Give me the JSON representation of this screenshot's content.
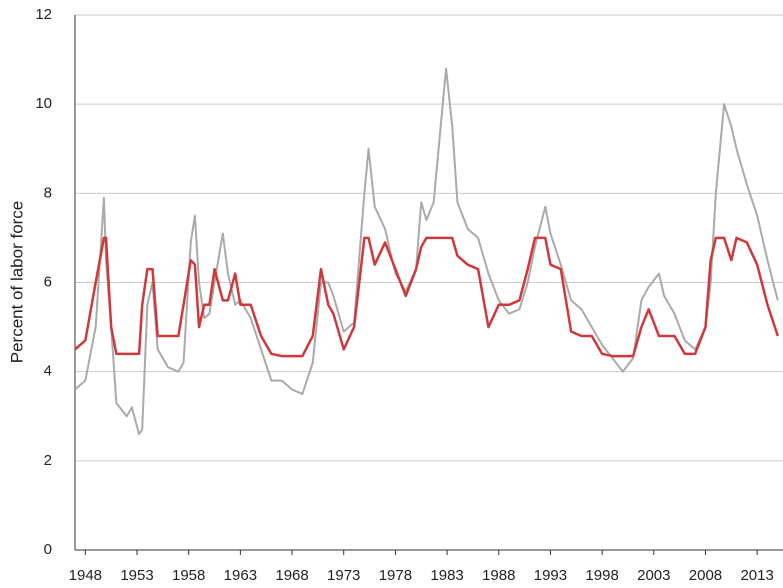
{
  "chart_data": {
    "type": "line",
    "y_label": "Percent of labor force",
    "x": [
      1947,
      1948,
      1949,
      1949.8,
      1950,
      1950.5,
      1951,
      1952,
      1952.5,
      1953.2,
      1953.5,
      1954,
      1954.5,
      1955,
      1956,
      1957,
      1957.5,
      1958.2,
      1958.6,
      1959,
      1959.5,
      1960,
      1960.5,
      1961.3,
      1961.8,
      1962.5,
      1963,
      1964,
      1965,
      1966,
      1967,
      1968,
      1969,
      1970,
      1970.8,
      1971.5,
      1972,
      1973,
      1974,
      1975,
      1975.4,
      1976,
      1977,
      1978,
      1979,
      1980,
      1980.5,
      1981,
      1981.7,
      1982.5,
      1982.9,
      1983.5,
      1984,
      1985,
      1986,
      1987,
      1988,
      1989,
      1990,
      1990.8,
      1991.5,
      1992.5,
      1993,
      1994,
      1995,
      1996,
      1997,
      1998,
      1999,
      2000,
      2001,
      2001.8,
      2002.5,
      2003.5,
      2004,
      2005,
      2006,
      2007,
      2008,
      2008.5,
      2009,
      2009.8,
      2010.5,
      2011,
      2012,
      2013,
      2014,
      2015
    ],
    "series": [
      {
        "color": "#aaaaaa",
        "values": [
          3.6,
          3.8,
          5,
          7.9,
          6.5,
          5,
          3.3,
          3.0,
          3.2,
          2.6,
          2.7,
          5.5,
          6.0,
          4.5,
          4.1,
          4.0,
          4.2,
          6.9,
          7.5,
          6.0,
          5.2,
          5.3,
          6.0,
          7.1,
          6.2,
          5.5,
          5.6,
          5.2,
          4.5,
          3.8,
          3.8,
          3.6,
          3.5,
          4.2,
          6.0,
          6.0,
          5.7,
          4.9,
          5.1,
          8.0,
          9.0,
          7.7,
          7.2,
          6.2,
          5.8,
          6.3,
          7.8,
          7.4,
          7.8,
          9.8,
          10.8,
          9.5,
          7.8,
          7.2,
          7.0,
          6.2,
          5.6,
          5.3,
          5.4,
          6.0,
          6.8,
          7.7,
          7.1,
          6.4,
          5.6,
          5.4,
          5.0,
          4.6,
          4.3,
          4.0,
          4.3,
          5.6,
          5.9,
          6.2,
          5.7,
          5.3,
          4.7,
          4.5,
          5.0,
          6.0,
          8.0,
          10.0,
          9.5,
          9.0,
          8.2,
          7.5,
          6.5,
          5.6
        ]
      },
      {
        "color": "#d0393b",
        "values": [
          4.5,
          4.7,
          6.0,
          7.0,
          7.0,
          5.0,
          4.4,
          4.4,
          4.4,
          4.4,
          5.5,
          6.3,
          6.3,
          4.8,
          4.8,
          4.8,
          5.5,
          6.5,
          6.4,
          5.0,
          5.5,
          5.5,
          6.3,
          5.6,
          5.6,
          6.2,
          5.5,
          5.5,
          4.8,
          4.4,
          4.35,
          4.35,
          4.35,
          4.8,
          6.3,
          5.5,
          5.3,
          4.5,
          5.0,
          7.0,
          7.0,
          6.4,
          6.9,
          6.3,
          5.7,
          6.3,
          6.8,
          7.0,
          7.0,
          7.0,
          7.0,
          7.0,
          6.6,
          6.4,
          6.3,
          5.0,
          5.5,
          5.5,
          5.6,
          6.3,
          7.0,
          7.0,
          6.4,
          6.3,
          4.9,
          4.8,
          4.8,
          4.4,
          4.35,
          4.35,
          4.35,
          5.0,
          5.4,
          4.8,
          4.8,
          4.8,
          4.4,
          4.4,
          5.0,
          6.5,
          7.0,
          7.0,
          6.5,
          7.0,
          6.9,
          6.4,
          5.5,
          4.8
        ]
      }
    ],
    "xlim": [
      1947,
      2015.5
    ],
    "xticks": [
      1948,
      1953,
      1958,
      1963,
      1968,
      1973,
      1978,
      1983,
      1988,
      1993,
      1998,
      2003,
      2008,
      2013
    ],
    "ylim": [
      0,
      12
    ],
    "yticks": [
      0,
      2,
      4,
      6,
      8,
      10,
      12
    ],
    "grid": true
  }
}
